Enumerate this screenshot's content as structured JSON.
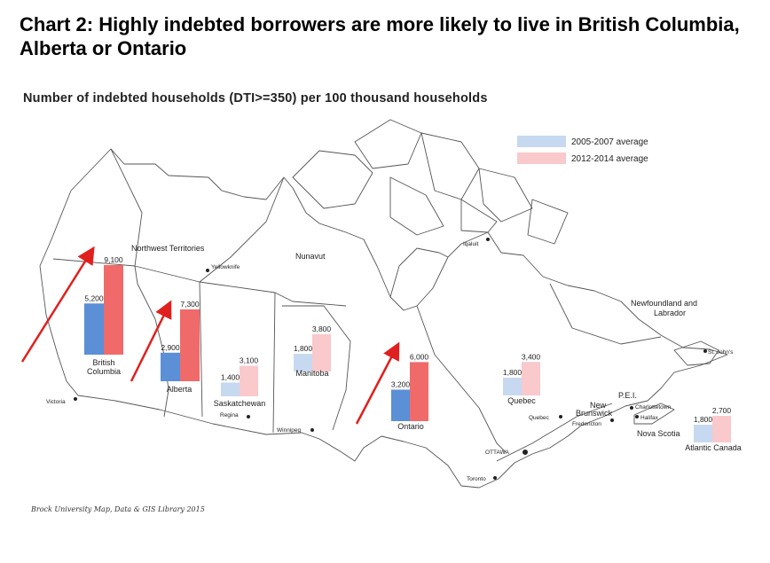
{
  "title": "Chart 2: Highly indebted borrowers are more likely to live in British Columbia, Alberta or Ontario",
  "subtitle": "Number of indebted households (DTI>=350) per 100 thousand households",
  "credit": "Brock University Map, Data & GIS Library 2015",
  "colors": {
    "a_dark": "#5b8fd6",
    "a_light": "#c7d9f0",
    "b_dark": "#f06a6a",
    "b_light": "#f9c9cc",
    "arrow": "#e0201e",
    "map_line": "#444444"
  },
  "chart_data": {
    "type": "bar",
    "title": "Chart 2: Highly indebted borrowers are more likely to live in British Columbia, Alberta or Ontario",
    "subtitle": "Number of indebted households (DTI>=350) per 100 thousand households",
    "categories": [
      "British Columbia",
      "Alberta",
      "Saskatchewan",
      "Manitoba",
      "Ontario",
      "Quebec",
      "Atlantic Canada"
    ],
    "series": [
      {
        "name": "2005-2007 average",
        "values": [
          5200,
          2900,
          1400,
          1800,
          3200,
          1800,
          1800
        ]
      },
      {
        "name": "2012-2014 average",
        "values": [
          9100,
          7300,
          3100,
          3800,
          6000,
          3400,
          2700
        ]
      }
    ],
    "data_labels": [
      [
        "5,200",
        "9,100"
      ],
      [
        "2,900",
        "7,300"
      ],
      [
        "1,400",
        "3,100"
      ],
      [
        "1,800",
        "3,800"
      ],
      [
        "3,200",
        "6,000"
      ],
      [
        "1,800",
        "3,400"
      ],
      [
        "1,800",
        "2,700"
      ]
    ],
    "highlighted": [
      "British Columbia",
      "Alberta",
      "Ontario"
    ],
    "legend_position": "top-right"
  },
  "map_labels": {
    "nwt": "Northwest Territories",
    "nunavut": "Nunavut",
    "iqaluit": "Iqaluit",
    "yellowknife": "Yellowknife",
    "nfl_1": "Newfoundland and",
    "nfl_2": "Labrador",
    "stjohns": "St. John's",
    "victoria": "Victoria",
    "regina": "Regina",
    "winnipeg": "Winnipeg",
    "ottawa": "OTTAWA",
    "toronto": "Toronto",
    "quebec_city": "Quebec",
    "pei": "P.E.I.",
    "charlottetown": "Charlottetown",
    "halifax": "Halifax",
    "fredericton": "Fredericton",
    "nb_1": "New",
    "nb_2": "Brunswick",
    "ns": "Nova Scotia",
    "bc_1": "British",
    "bc_2": "Columbia",
    "ab": "Alberta",
    "sk": "Saskatchewan",
    "mb": "Manitoba",
    "on": "Ontario",
    "qc": "Quebec",
    "atl": "Atlantic Canada"
  }
}
